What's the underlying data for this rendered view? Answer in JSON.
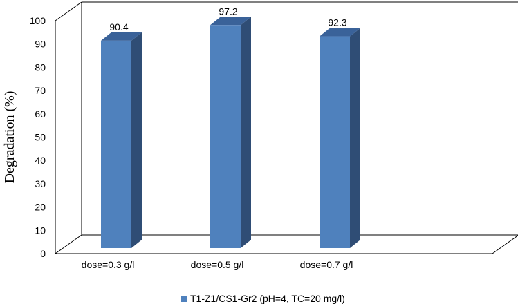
{
  "chart_data": {
    "type": "bar",
    "categories": [
      "dose=0.3 g/l",
      "dose=0.5 g/l",
      "dose=0.7 g/l"
    ],
    "series": [
      {
        "name": "T1-Z1/CS1-Gr2 (pH=4, TC=20 mg/l)",
        "values": [
          90.4,
          97.2,
          92.3
        ]
      }
    ],
    "data_labels": [
      "90.4",
      "97.2",
      "92.3"
    ],
    "ylabel": "Degradation (%)",
    "ylim": [
      0,
      100
    ],
    "yticks": [
      0,
      10,
      20,
      30,
      40,
      50,
      60,
      70,
      80,
      90,
      100
    ],
    "grid": false,
    "legend_position": "bottom",
    "style": "3d-column",
    "colors": {
      "bar_front": "#4f81bd",
      "bar_side": "#2f4d75",
      "bar_top": "#3a6299",
      "frame": "#000000"
    }
  }
}
